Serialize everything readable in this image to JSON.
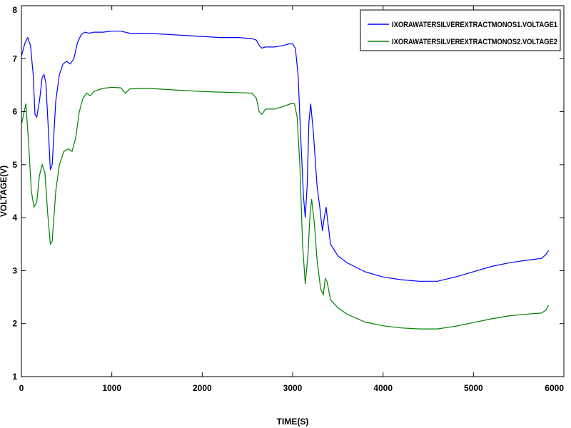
{
  "chart_data": {
    "type": "line",
    "title": "",
    "xlabel": "TIME(S)",
    "ylabel": "VOLTAGE(V)",
    "xlim": [
      0,
      6000
    ],
    "ylim": [
      1,
      8
    ],
    "xticks": [
      "0",
      "1000",
      "2000",
      "3000",
      "4000",
      "5000",
      "6000"
    ],
    "yticks": [
      "1",
      "2",
      "3",
      "4",
      "5",
      "6",
      "7",
      "8"
    ],
    "grid": false,
    "legend": "top-right",
    "series": [
      {
        "name": "IXORAWATERSILVEREXTRACTMONOS1.VOLTAGE1",
        "color": "#0000ff",
        "points": [
          [
            0,
            7.05
          ],
          [
            40,
            7.3
          ],
          [
            70,
            7.4
          ],
          [
            100,
            7.25
          ],
          [
            130,
            6.7
          ],
          [
            150,
            5.95
          ],
          [
            170,
            5.9
          ],
          [
            200,
            6.2
          ],
          [
            230,
            6.65
          ],
          [
            250,
            6.7
          ],
          [
            270,
            6.55
          ],
          [
            300,
            5.6
          ],
          [
            320,
            4.9
          ],
          [
            340,
            5.0
          ],
          [
            380,
            6.2
          ],
          [
            420,
            6.7
          ],
          [
            460,
            6.9
          ],
          [
            500,
            6.95
          ],
          [
            540,
            6.9
          ],
          [
            580,
            7.0
          ],
          [
            620,
            7.3
          ],
          [
            660,
            7.45
          ],
          [
            700,
            7.5
          ],
          [
            750,
            7.48
          ],
          [
            800,
            7.5
          ],
          [
            900,
            7.5
          ],
          [
            1000,
            7.52
          ],
          [
            1100,
            7.52
          ],
          [
            1200,
            7.48
          ],
          [
            1400,
            7.48
          ],
          [
            1600,
            7.46
          ],
          [
            1800,
            7.44
          ],
          [
            2000,
            7.42
          ],
          [
            2200,
            7.4
          ],
          [
            2400,
            7.4
          ],
          [
            2550,
            7.38
          ],
          [
            2600,
            7.35
          ],
          [
            2630,
            7.25
          ],
          [
            2660,
            7.2
          ],
          [
            2700,
            7.22
          ],
          [
            2800,
            7.22
          ],
          [
            2900,
            7.25
          ],
          [
            2960,
            7.28
          ],
          [
            3000,
            7.28
          ],
          [
            3030,
            7.2
          ],
          [
            3060,
            6.7
          ],
          [
            3090,
            5.5
          ],
          [
            3120,
            4.4
          ],
          [
            3140,
            4.0
          ],
          [
            3160,
            4.6
          ],
          [
            3180,
            5.8
          ],
          [
            3200,
            6.15
          ],
          [
            3230,
            5.6
          ],
          [
            3270,
            4.6
          ],
          [
            3300,
            4.2
          ],
          [
            3330,
            3.75
          ],
          [
            3350,
            4.0
          ],
          [
            3370,
            4.2
          ],
          [
            3390,
            3.9
          ],
          [
            3420,
            3.5
          ],
          [
            3500,
            3.28
          ],
          [
            3600,
            3.15
          ],
          [
            3800,
            2.98
          ],
          [
            4000,
            2.88
          ],
          [
            4200,
            2.83
          ],
          [
            4400,
            2.8
          ],
          [
            4600,
            2.8
          ],
          [
            4800,
            2.88
          ],
          [
            5000,
            2.98
          ],
          [
            5200,
            3.08
          ],
          [
            5400,
            3.15
          ],
          [
            5600,
            3.2
          ],
          [
            5750,
            3.23
          ],
          [
            5800,
            3.3
          ],
          [
            5830,
            3.38
          ]
        ]
      },
      {
        "name": "IXORAWATERSILVEREXTRACTMONOS2.VOLTAGE2",
        "color": "#008000",
        "points": [
          [
            0,
            5.75
          ],
          [
            30,
            6.0
          ],
          [
            50,
            6.15
          ],
          [
            80,
            5.4
          ],
          [
            110,
            4.5
          ],
          [
            140,
            4.2
          ],
          [
            170,
            4.3
          ],
          [
            200,
            4.8
          ],
          [
            230,
            5.0
          ],
          [
            260,
            4.85
          ],
          [
            290,
            4.1
          ],
          [
            320,
            3.5
          ],
          [
            340,
            3.55
          ],
          [
            380,
            4.5
          ],
          [
            420,
            5.0
          ],
          [
            470,
            5.25
          ],
          [
            520,
            5.3
          ],
          [
            560,
            5.25
          ],
          [
            600,
            5.5
          ],
          [
            640,
            6.0
          ],
          [
            680,
            6.25
          ],
          [
            720,
            6.35
          ],
          [
            760,
            6.3
          ],
          [
            800,
            6.38
          ],
          [
            900,
            6.44
          ],
          [
            1000,
            6.46
          ],
          [
            1100,
            6.45
          ],
          [
            1150,
            6.35
          ],
          [
            1200,
            6.43
          ],
          [
            1400,
            6.44
          ],
          [
            1600,
            6.42
          ],
          [
            1800,
            6.4
          ],
          [
            2000,
            6.38
          ],
          [
            2200,
            6.37
          ],
          [
            2400,
            6.36
          ],
          [
            2550,
            6.35
          ],
          [
            2600,
            6.25
          ],
          [
            2630,
            6.0
          ],
          [
            2660,
            5.95
          ],
          [
            2700,
            6.05
          ],
          [
            2800,
            6.05
          ],
          [
            2900,
            6.1
          ],
          [
            2980,
            6.15
          ],
          [
            3020,
            6.15
          ],
          [
            3050,
            5.9
          ],
          [
            3080,
            5.0
          ],
          [
            3110,
            3.5
          ],
          [
            3140,
            2.75
          ],
          [
            3170,
            3.3
          ],
          [
            3190,
            4.0
          ],
          [
            3210,
            4.35
          ],
          [
            3240,
            3.9
          ],
          [
            3270,
            3.2
          ],
          [
            3310,
            2.65
          ],
          [
            3340,
            2.55
          ],
          [
            3360,
            2.85
          ],
          [
            3380,
            2.8
          ],
          [
            3420,
            2.45
          ],
          [
            3500,
            2.3
          ],
          [
            3600,
            2.18
          ],
          [
            3800,
            2.03
          ],
          [
            4000,
            1.96
          ],
          [
            4200,
            1.92
          ],
          [
            4400,
            1.9
          ],
          [
            4600,
            1.9
          ],
          [
            4800,
            1.95
          ],
          [
            5000,
            2.02
          ],
          [
            5200,
            2.09
          ],
          [
            5400,
            2.15
          ],
          [
            5600,
            2.18
          ],
          [
            5750,
            2.2
          ],
          [
            5800,
            2.25
          ],
          [
            5830,
            2.35
          ]
        ]
      }
    ]
  }
}
